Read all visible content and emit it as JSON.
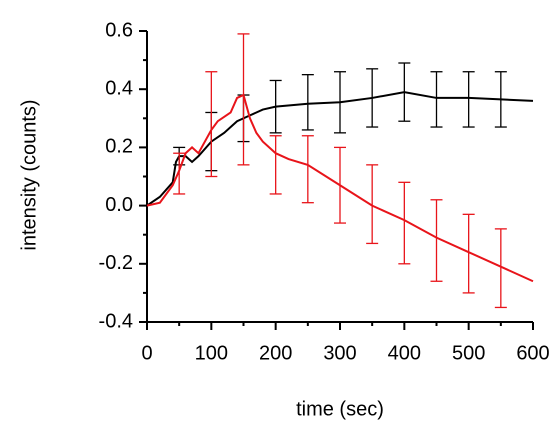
{
  "chart_data": {
    "type": "line",
    "xlabel": "time (sec)",
    "ylabel": "intensity (counts)",
    "xlim": [
      0,
      600
    ],
    "ylim": [
      -0.4,
      0.6
    ],
    "xticks": [
      0,
      100,
      200,
      300,
      400,
      500,
      600
    ],
    "yticks": [
      {
        "value": -0.4,
        "label": "-0.4"
      },
      {
        "value": -0.2,
        "label": "-0.2"
      },
      {
        "value": 0,
        "label": "0.0"
      },
      {
        "value": 0.2,
        "label": "0.2"
      },
      {
        "value": 0.4,
        "label": "0.4"
      },
      {
        "value": 0.6,
        "label": "0.6"
      }
    ],
    "series": [
      {
        "color": "#000000",
        "x": [
          0,
          20,
          40,
          45,
          50,
          60,
          70,
          80,
          100,
          120,
          140,
          160,
          180,
          200,
          250,
          300,
          350,
          400,
          450,
          500,
          550,
          600
        ],
        "values": [
          0,
          0.03,
          0.08,
          0.15,
          0.17,
          0.17,
          0.15,
          0.17,
          0.22,
          0.25,
          0.29,
          0.31,
          0.33,
          0.34,
          0.35,
          0.355,
          0.37,
          0.39,
          0.37,
          0.37,
          0.365,
          0.36
        ],
        "error_bars": {
          "x": [
            50,
            100,
            150,
            200,
            250,
            300,
            350,
            400,
            450,
            500,
            550
          ],
          "values": [
            0.17,
            0.22,
            0.3,
            0.34,
            0.355,
            0.355,
            0.37,
            0.39,
            0.365,
            0.365,
            0.365
          ],
          "errors": [
            0.03,
            0.1,
            0.08,
            0.09,
            0.095,
            0.105,
            0.1,
            0.1,
            0.095,
            0.095,
            0.095
          ]
        }
      },
      {
        "color": "#e8141a",
        "x": [
          0,
          20,
          40,
          50,
          60,
          70,
          80,
          100,
          110,
          130,
          140,
          150,
          160,
          170,
          180,
          200,
          220,
          250,
          300,
          350,
          400,
          450,
          500,
          550,
          600
        ],
        "values": [
          0,
          0.01,
          0.07,
          0.12,
          0.18,
          0.2,
          0.18,
          0.26,
          0.29,
          0.32,
          0.37,
          0.38,
          0.3,
          0.25,
          0.22,
          0.18,
          0.16,
          0.14,
          0.07,
          0,
          -0.05,
          -0.11,
          -0.16,
          -0.21,
          -0.26
        ],
        "error_bars": {
          "x": [
            50,
            100,
            150,
            200,
            250,
            300,
            350,
            400,
            450,
            500,
            550
          ],
          "values": [
            0.11,
            0.28,
            0.365,
            0.14,
            0.125,
            0.07,
            0.005,
            -0.06,
            -0.12,
            -0.165,
            -0.215
          ],
          "errors": [
            0.07,
            0.18,
            0.225,
            0.1,
            0.115,
            0.13,
            0.135,
            0.14,
            0.14,
            0.135,
            0.135
          ]
        }
      }
    ]
  }
}
